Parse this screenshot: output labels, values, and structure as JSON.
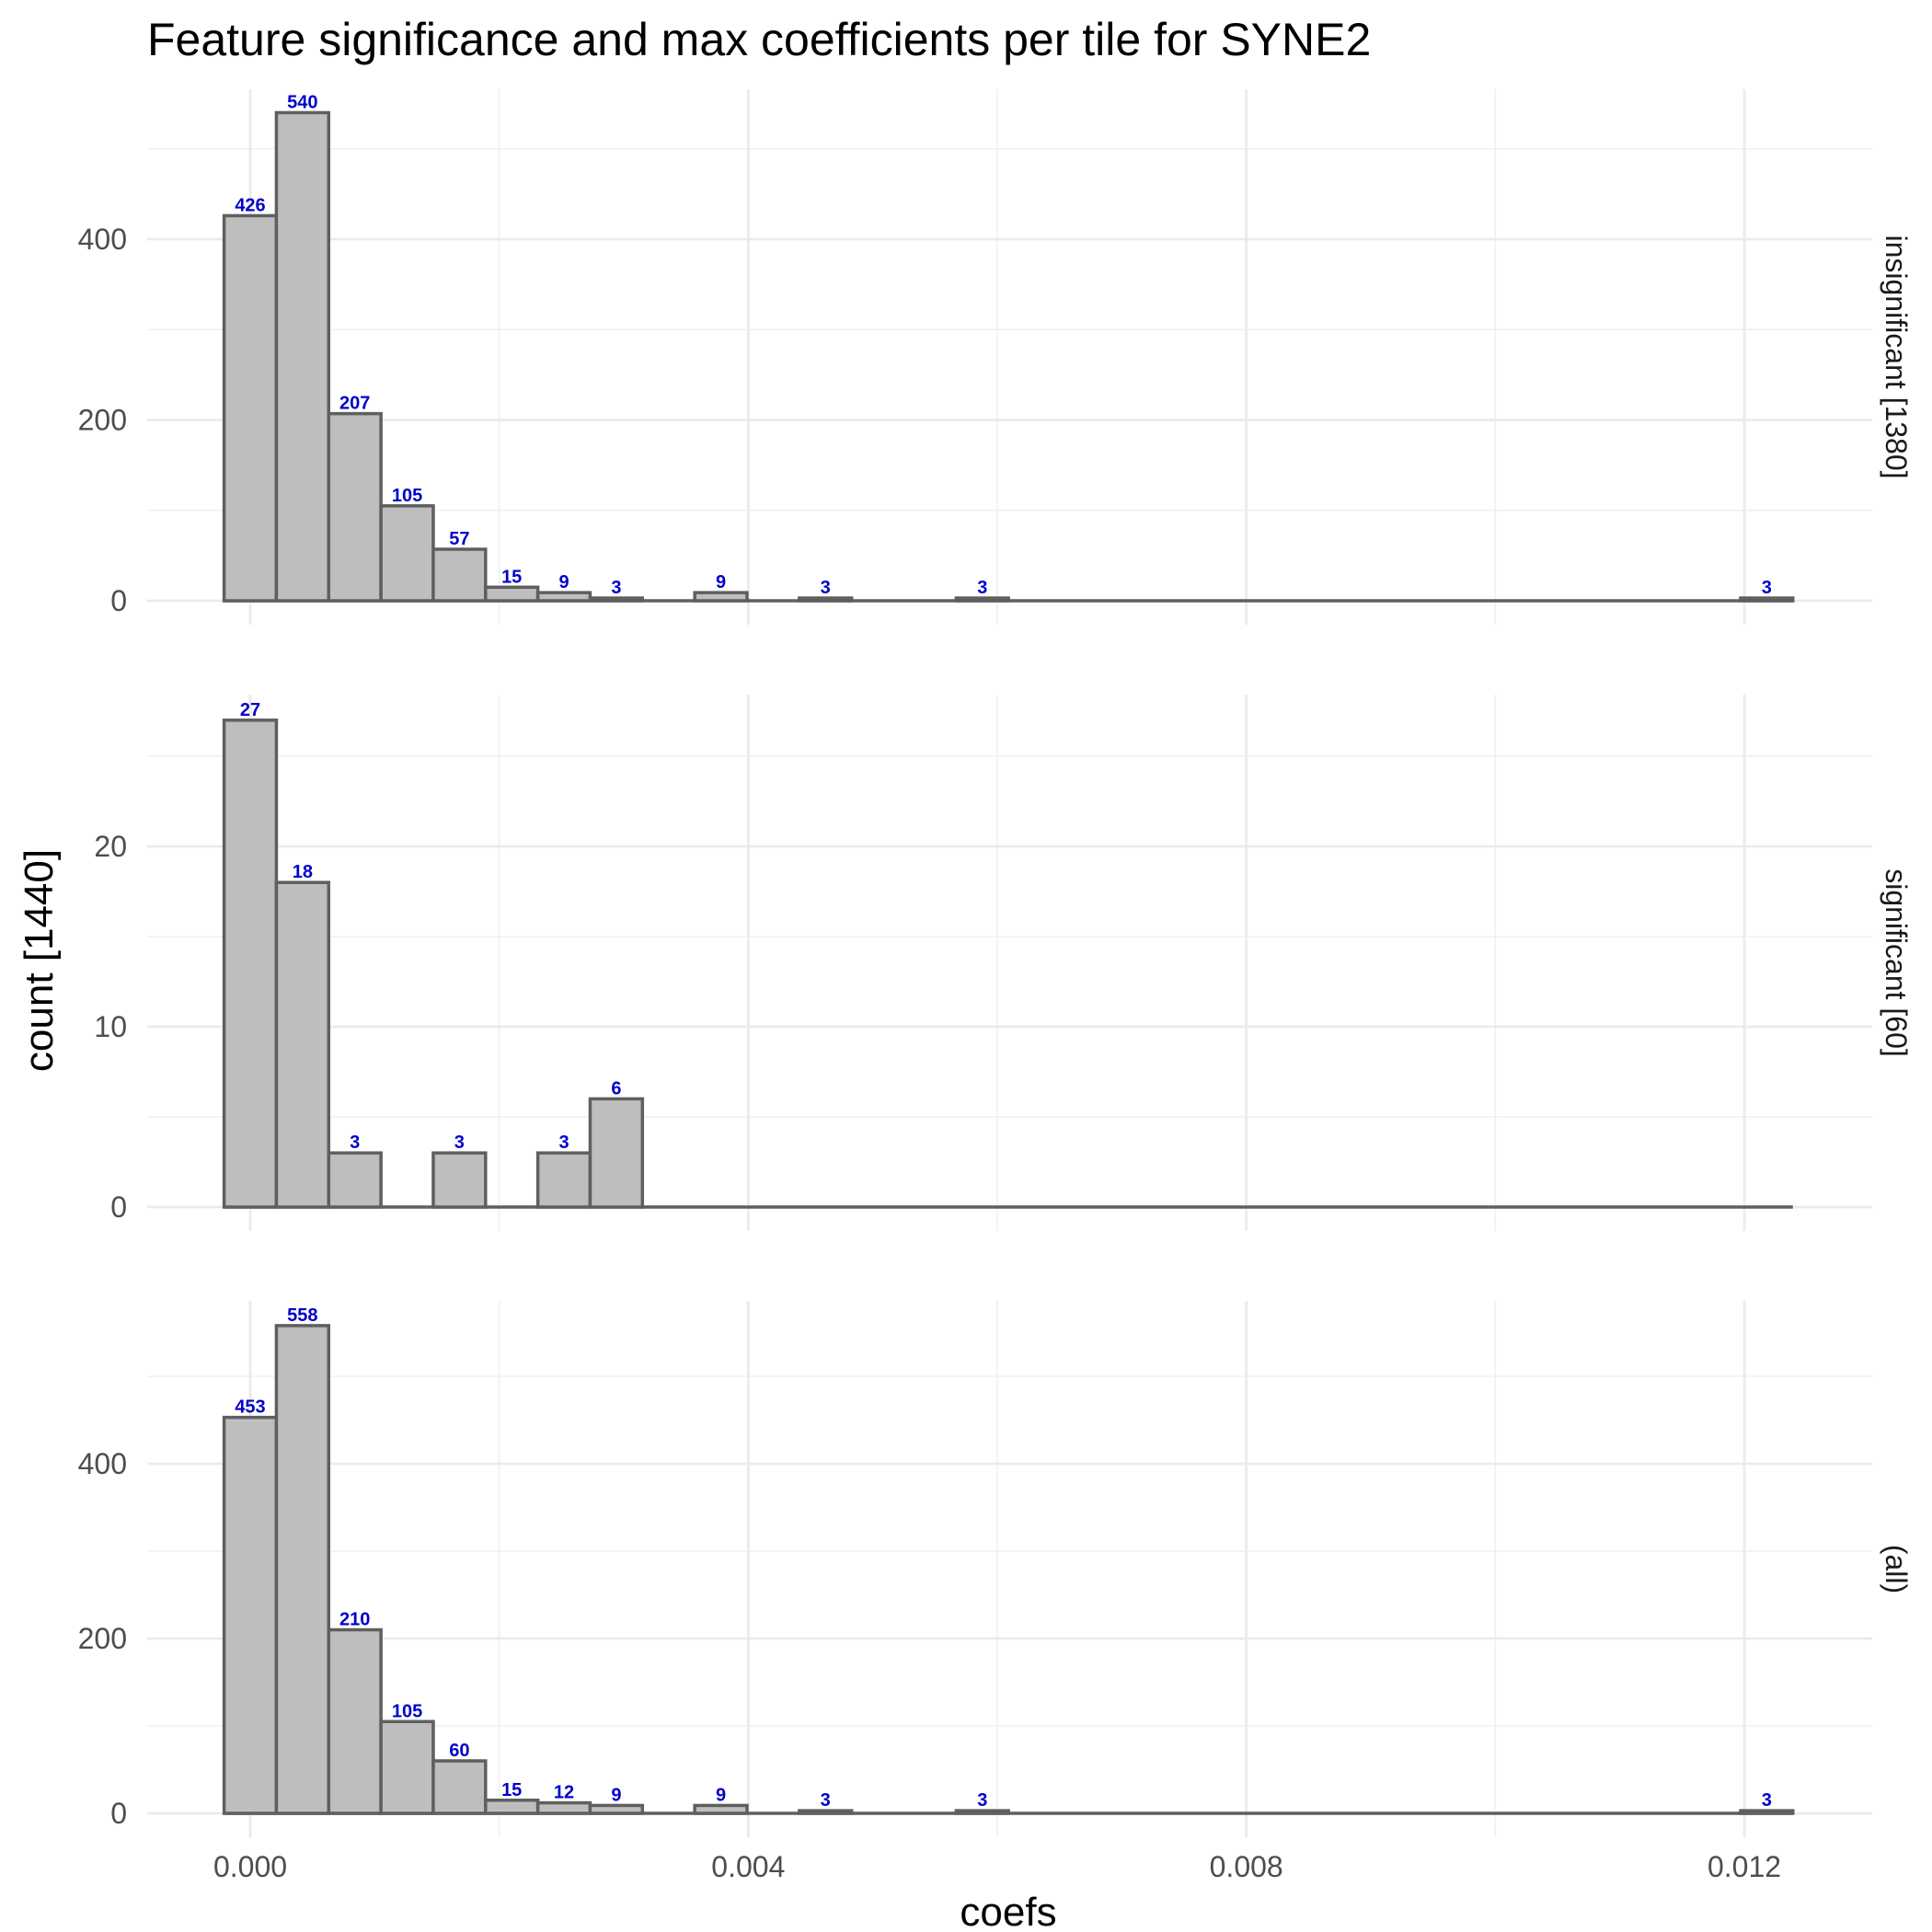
{
  "chart_data": {
    "type": "bar",
    "title": "Feature significance and max coefficients per tile for SYNE2",
    "xlabel": "coefs",
    "ylabel": "count [1440]",
    "xlim": [
      -0.0008,
      0.013
    ],
    "x_ticks": [
      0.0,
      0.004,
      0.008,
      0.012
    ],
    "x_tick_labels": [
      "0.000",
      "0.004",
      "0.008",
      "0.012"
    ],
    "grid": true,
    "bin_width": 0.00042,
    "bin_centers": [
      0.0,
      0.00042,
      0.00084,
      0.00126,
      0.00168,
      0.0021,
      0.00252,
      0.00294,
      0.00336,
      0.00378,
      0.0042,
      0.00462,
      0.00504,
      0.00546,
      0.00588,
      0.0063,
      0.00672,
      0.00714,
      0.00756,
      0.00798,
      0.0084,
      0.00882,
      0.00924,
      0.00966,
      0.01008,
      0.0105,
      0.01092,
      0.01134,
      0.01176,
      0.01218
    ],
    "label_color": "#0000cc",
    "bar_fill": "#bebebe",
    "bar_stroke": "#5f5f5f",
    "panels": [
      {
        "strip": "insignificant [1380]",
        "ylim": [
          0,
          560
        ],
        "y_ticks": [
          0,
          200,
          400
        ],
        "y_tick_labels": [
          "0",
          "200",
          "400"
        ],
        "values": [
          426,
          540,
          207,
          105,
          57,
          15,
          9,
          3,
          0,
          9,
          0,
          3,
          0,
          0,
          3,
          0,
          0,
          0,
          0,
          0,
          0,
          0,
          0,
          0,
          0,
          0,
          0,
          0,
          0,
          3
        ]
      },
      {
        "strip": "significant [60]",
        "ylim": [
          0,
          27.5
        ],
        "y_ticks": [
          0,
          10,
          20
        ],
        "y_tick_labels": [
          "0",
          "10",
          "20"
        ],
        "values": [
          27,
          18,
          3,
          0,
          3,
          0,
          3,
          6,
          0,
          0,
          0,
          0,
          0,
          0,
          0,
          0,
          0,
          0,
          0,
          0,
          0,
          0,
          0,
          0,
          0,
          0,
          0,
          0,
          0,
          0
        ]
      },
      {
        "strip": "(all)",
        "ylim": [
          0,
          580
        ],
        "y_ticks": [
          0,
          200,
          400
        ],
        "y_tick_labels": [
          "0",
          "200",
          "400"
        ],
        "values": [
          453,
          558,
          210,
          105,
          60,
          15,
          12,
          9,
          0,
          9,
          0,
          3,
          0,
          0,
          3,
          0,
          0,
          0,
          0,
          0,
          0,
          0,
          0,
          0,
          0,
          0,
          0,
          0,
          0,
          3
        ]
      }
    ]
  }
}
